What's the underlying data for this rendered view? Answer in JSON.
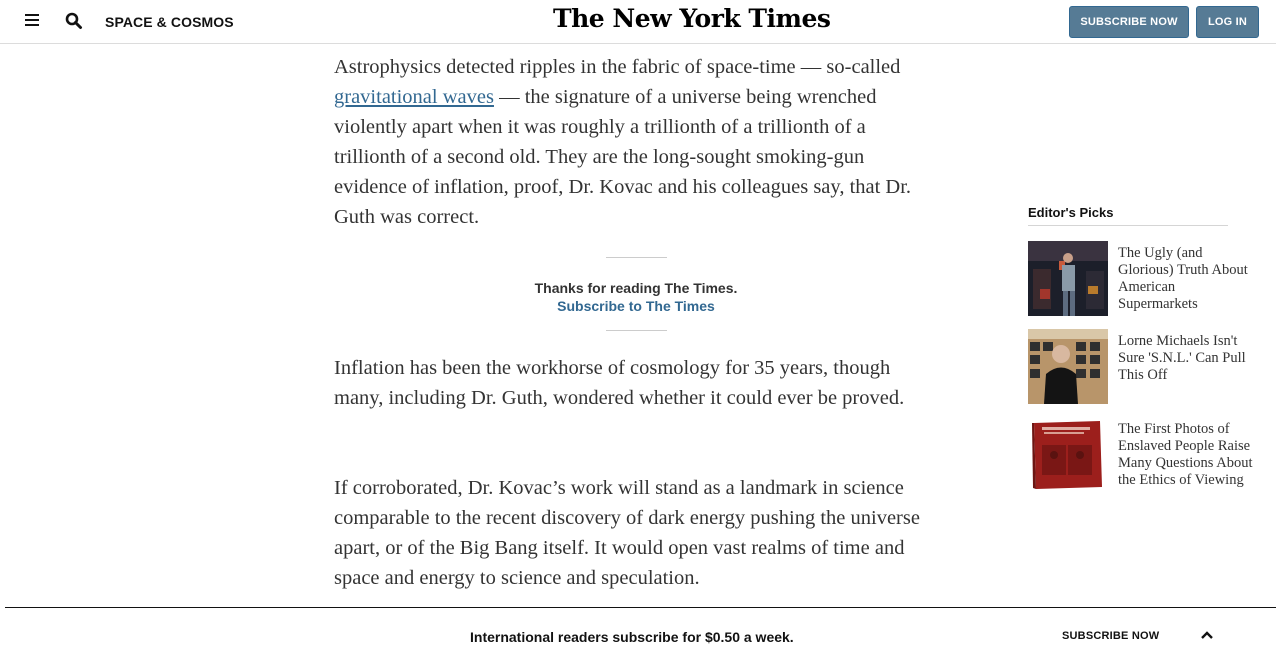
{
  "header": {
    "section": "SPACE & COSMOS",
    "logo": "The New York Times",
    "subscribe_label": "SUBSCRIBE NOW",
    "login_label": "LOG IN"
  },
  "article": {
    "p1_before": "Astrophysics detected ripples in the fabric of space-time — so-called ",
    "p1_link": "gravitational waves",
    "p1_after": " — the signature of a universe being wrenched violently apart when it was roughly a trillionth of a trillionth of a trillionth of a second old. They are the long-sought smoking-gun evidence of inflation, proof, Dr. Kovac and his colleagues say, that Dr. Guth was correct.",
    "thanks_text": "Thanks for reading The Times.",
    "thanks_link": "Subscribe to The Times",
    "p2": "Inflation has been the workhorse of cosmology for 35 years, though many, including Dr. Guth, wondered whether it could ever be proved.",
    "p3": "If corroborated, Dr. Kovac’s work will stand as a landmark in science comparable to the recent discovery of dark energy pushing the universe apart, or of the Big Bang itself. It would open vast realms of time and space and energy to science and speculation."
  },
  "sidebar": {
    "title": "Editor's Picks",
    "items": [
      {
        "headline": "The Ugly (and Glorious) Truth About American Supermarkets"
      },
      {
        "headline": "Lorne Michaels Isn't Sure 'S.N.L.' Can Pull This Off"
      },
      {
        "headline": "The First Photos of Enslaved People Raise Many Questions About the Ethics of Viewing"
      }
    ]
  },
  "bottom_bar": {
    "text": "International readers subscribe for $0.50 a week.",
    "subscribe_label": "SUBSCRIBE NOW"
  }
}
